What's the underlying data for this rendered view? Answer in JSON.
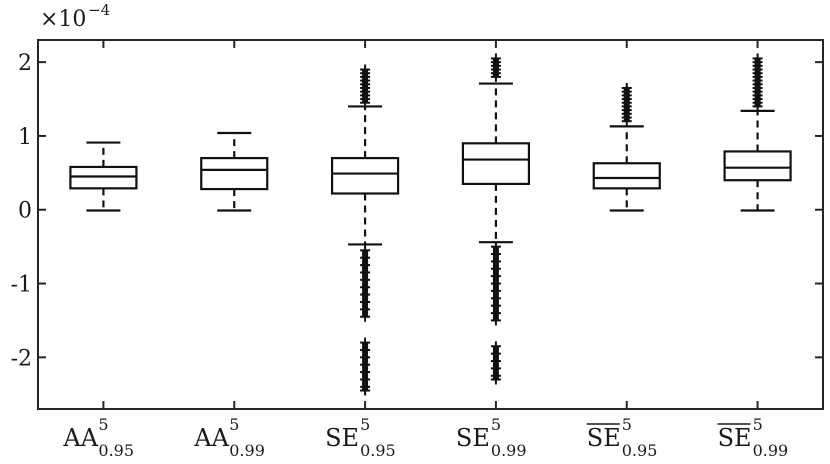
{
  "chart_data": {
    "type": "box",
    "title": "",
    "xlabel": "",
    "ylabel": "",
    "y_exponent": {
      "base": "×10",
      "power": "−4"
    },
    "ylim": [
      -2.7,
      2.3
    ],
    "yticks": [
      -2,
      -1,
      0,
      1,
      2
    ],
    "ytick_labels": [
      "-2",
      "-1",
      "0",
      "1",
      "2"
    ],
    "grid": false,
    "categories": [
      {
        "base": "AA",
        "sup": "5",
        "sub": "0.95",
        "overline": false
      },
      {
        "base": "AA",
        "sup": "5",
        "sub": "0.99",
        "overline": false
      },
      {
        "base": "SE",
        "sup": "5",
        "sub": "0.95",
        "overline": false
      },
      {
        "base": "SE",
        "sup": "5",
        "sub": "0.99",
        "overline": false
      },
      {
        "base": "SE",
        "sup": "5",
        "sub": "0.95",
        "overline": true
      },
      {
        "base": "SE",
        "sup": "5",
        "sub": "0.99",
        "overline": true
      }
    ],
    "boxes": [
      {
        "whisker_low": -0.01,
        "q1": 0.29,
        "median": 0.45,
        "q3": 0.58,
        "whisker_high": 0.91,
        "outliers_high": [],
        "outliers_low": []
      },
      {
        "whisker_low": -0.01,
        "q1": 0.28,
        "median": 0.54,
        "q3": 0.7,
        "whisker_high": 1.04,
        "outliers_high": [],
        "outliers_low": []
      },
      {
        "whisker_low": -0.47,
        "q1": 0.22,
        "median": 0.49,
        "q3": 0.7,
        "whisker_high": 1.4,
        "outliers_high": [
          1.45,
          1.5,
          1.55,
          1.6,
          1.65,
          1.7,
          1.75,
          1.8,
          1.85,
          1.9
        ],
        "outliers_low": [
          -0.55,
          -0.65,
          -0.75,
          -0.85,
          -0.95,
          -1.05,
          -1.15,
          -1.25,
          -1.35,
          -1.45,
          -1.8,
          -1.9,
          -2.0,
          -2.1,
          -2.2,
          -2.3,
          -2.4,
          -2.45
        ]
      },
      {
        "whisker_low": -0.44,
        "q1": 0.35,
        "median": 0.68,
        "q3": 0.9,
        "whisker_high": 1.71,
        "outliers_high": [
          1.8,
          1.85,
          1.9,
          1.95,
          2.0,
          2.05
        ],
        "outliers_low": [
          -0.5,
          -0.6,
          -0.7,
          -0.8,
          -0.9,
          -1.0,
          -1.1,
          -1.2,
          -1.3,
          -1.4,
          -1.5,
          -1.85,
          -1.95,
          -2.05,
          -2.15,
          -2.25,
          -2.3
        ]
      },
      {
        "whisker_low": -0.01,
        "q1": 0.29,
        "median": 0.43,
        "q3": 0.63,
        "whisker_high": 1.13,
        "outliers_high": [
          1.2,
          1.25,
          1.3,
          1.35,
          1.4,
          1.45,
          1.5,
          1.55,
          1.6,
          1.65
        ],
        "outliers_low": []
      },
      {
        "whisker_low": -0.01,
        "q1": 0.4,
        "median": 0.57,
        "q3": 0.79,
        "whisker_high": 1.34,
        "outliers_high": [
          1.4,
          1.45,
          1.5,
          1.55,
          1.6,
          1.65,
          1.7,
          1.75,
          1.8,
          1.85,
          1.9,
          1.95,
          2.0,
          2.05
        ],
        "outliers_low": []
      }
    ]
  }
}
